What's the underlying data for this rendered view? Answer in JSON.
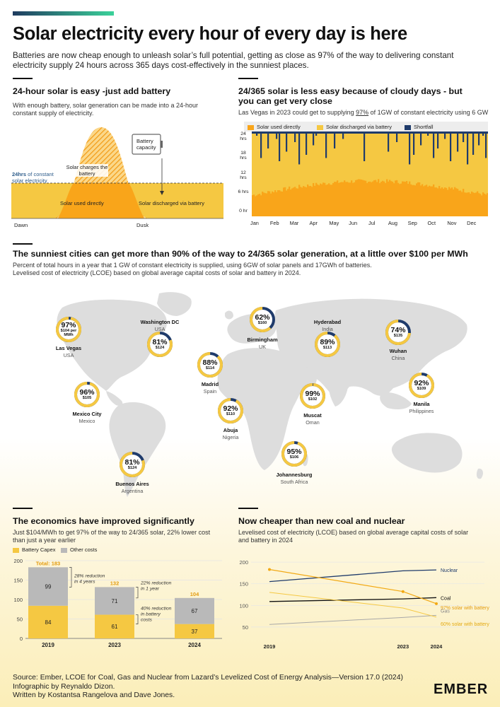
{
  "header": {
    "title": "Solar electricity every hour of every day is here",
    "subtitle": "Batteries are now cheap enough to unleash solar’s full potential, getting as close as 97% of the way to delivering constant electricity supply 24 hours across 365 days cost-effectively in the sunniest places."
  },
  "colors": {
    "solar_direct": "#f9a51a",
    "solar_battery": "#f5c842",
    "shortfall": "#1f3b6b",
    "other_costs": "#b9b9b9",
    "line_gray": "#9a9a9a"
  },
  "panel1": {
    "title": "24-hour solar is easy -just add battery",
    "subtitle": "With enough battery, solar generation can be made into a 24-hour constant supply of electricity.",
    "battery_label": "Battery capacity",
    "charges_label": "Solar charges the battery",
    "constant_label_bold": "24hrs",
    "constant_label_rest": "of constant solar electricity",
    "direct_label": "Solar used directly",
    "discharged_label": "Solar discharged via battery",
    "axis_dawn": "Dawn",
    "axis_dusk": "Dusk"
  },
  "panel2": {
    "title": "24/365 solar is less easy because of cloudy days - but you can get very close",
    "subtitle_pre": "Las Vegas in 2023 could get to supplying ",
    "subtitle_pct": "97%",
    "subtitle_post": " of 1GW of constant electricity using 6 GW",
    "legend": [
      "Solar used directly",
      "Solar discharged via battery",
      "Shortfall"
    ],
    "y_ticks": [
      "24 hrs",
      "18 hrs",
      "12 hrs",
      "6 hrs",
      "0 hr"
    ],
    "months": [
      "Jan",
      "Feb",
      "Mar",
      "Apr",
      "May",
      "Jun",
      "Jul",
      "Aug",
      "Sep",
      "Oct",
      "Nov",
      "Dec"
    ]
  },
  "map_section": {
    "title": "The sunniest cities can get more than 90% of the way to 24/365 solar generation, at a little over $100 per MWh",
    "subtitle_1": "Percent of total hours in a year that 1 GW of constant electricity is supplied, using 6GW of solar panels and 17GWh of batteries.",
    "subtitle_2": "Levelised cost of electricity (LCOE) based on global average capital costs of solar and battery in 2024.",
    "cities": [
      {
        "name": "Las Vegas",
        "country": "USA",
        "pct": "97%",
        "cost": "$104 per MWh",
        "value": 97
      },
      {
        "name": "Washington DC",
        "country": "USA",
        "pct": "81%",
        "cost": "$124",
        "value": 81
      },
      {
        "name": "Mexico City",
        "country": "Mexico",
        "pct": "96%",
        "cost": "$105",
        "value": 96
      },
      {
        "name": "Buenos Aires",
        "country": "Argentina",
        "pct": "81%",
        "cost": "$124",
        "value": 81
      },
      {
        "name": "Birmingham",
        "country": "UK",
        "pct": "62%",
        "cost": "$160",
        "value": 62
      },
      {
        "name": "Madrid",
        "country": "Spain",
        "pct": "88%",
        "cost": "$114",
        "value": 88
      },
      {
        "name": "Abuja",
        "country": "Nigeria",
        "pct": "92%",
        "cost": "$110",
        "value": 92
      },
      {
        "name": "Johannesburg",
        "country": "South Africa",
        "pct": "95%",
        "cost": "$106",
        "value": 95
      },
      {
        "name": "Hyderabad",
        "country": "India",
        "pct": "89%",
        "cost": "$113",
        "value": 89
      },
      {
        "name": "Muscat",
        "country": "Oman",
        "pct": "99%",
        "cost": "$102",
        "value": 99
      },
      {
        "name": "Wuhan",
        "country": "China",
        "pct": "74%",
        "cost": "$135",
        "value": 74
      },
      {
        "name": "Manila",
        "country": "Philippines",
        "pct": "92%",
        "cost": "$109",
        "value": 92
      }
    ]
  },
  "footer": {
    "source": "Source: Ember,  LCOE for Coal, Gas and Nuclear from Lazard’s Levelized Cost of Energy Analysis—Version 17.0 (2024)",
    "infographic": "Infographic by Reynaldo Dizon.",
    "written": "Written by Kostantsa Rangelova and Dave Jones.",
    "logo": "EMBER"
  },
  "chart_data": [
    {
      "type": "bar",
      "title": "The economics have improved significantly",
      "subtitle": "Just $104/MWh to get 97% of the way to 24/365 solar, 22% lower cost than just a year earlier",
      "categories": [
        "2019",
        "2023",
        "2024"
      ],
      "series": [
        {
          "name": "Battery Capex",
          "values": [
            84,
            61,
            37
          ]
        },
        {
          "name": "Other costs",
          "values": [
            99,
            71,
            67
          ]
        }
      ],
      "totals": [
        "Total: 183",
        "132",
        "104"
      ],
      "y_ticks": [
        "200",
        "150",
        "100",
        "50",
        "0"
      ],
      "ylim": [
        0,
        200
      ],
      "annotations": [
        "28% reduction in 4 years",
        "22% reduction in 1 year",
        "40% reduction in battery costs"
      ]
    },
    {
      "type": "line",
      "title": "Now cheaper than new coal and nuclear",
      "subtitle": "Levelised cost of electricity (LCOE) based on global average capital costs of solar and battery in 2024",
      "x": [
        2019,
        2023,
        2024
      ],
      "x_labels": [
        "2019",
        "2023",
        "2024"
      ],
      "y_ticks": [
        "200",
        "150",
        "100",
        "50"
      ],
      "ylim": [
        40,
        210
      ],
      "series": [
        {
          "name": "Nuclear",
          "values": [
            155,
            180,
            182
          ]
        },
        {
          "name": "Coal",
          "values": [
            109,
            115,
            118
          ]
        },
        {
          "name": "97% solar with battery",
          "values": [
            183,
            132,
            104
          ]
        },
        {
          "name": "Gas",
          "values": [
            56,
            72,
            77
          ]
        },
        {
          "name": "60% solar with battery",
          "values": [
            130,
            94,
            73
          ]
        }
      ]
    }
  ]
}
